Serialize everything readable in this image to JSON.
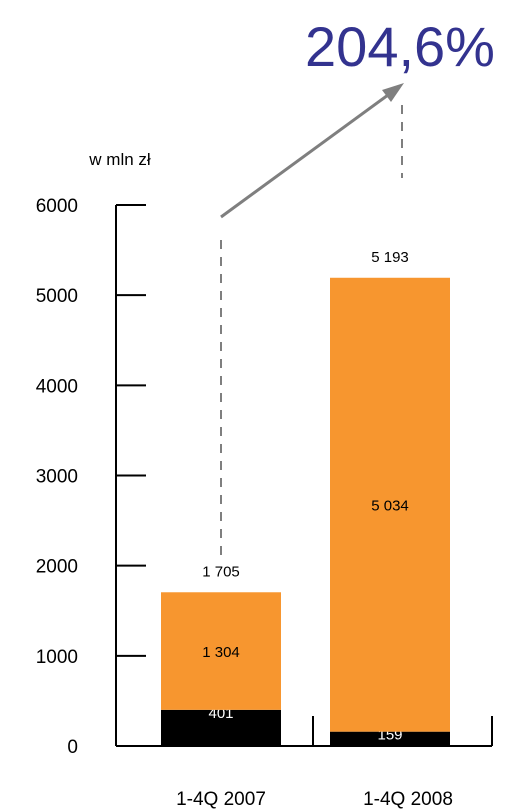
{
  "chart_data": {
    "type": "bar",
    "stacked": true,
    "unit_label": "w mln zł",
    "growth_label": "204,6%",
    "categories": [
      "1-4Q 2007",
      "1-4Q 2008"
    ],
    "y_ticks": [
      "6000",
      "5000",
      "4000",
      "3000",
      "2000",
      "1000",
      "0"
    ],
    "ylim": [
      0,
      6000
    ],
    "series": [
      {
        "values": [
          401,
          159
        ],
        "labels": [
          "401",
          "159"
        ],
        "color": "#000000",
        "label_color": "#ffffff"
      },
      {
        "values": [
          1304,
          5034
        ],
        "labels": [
          "1 304",
          "5 034"
        ],
        "color": "#f7962f",
        "label_color": "#000000"
      }
    ],
    "totals": [
      "1 705",
      "5 193"
    ],
    "colors": {
      "growth": "#33338f",
      "arrow": "#7f7f7f",
      "axis": "#000000"
    }
  }
}
